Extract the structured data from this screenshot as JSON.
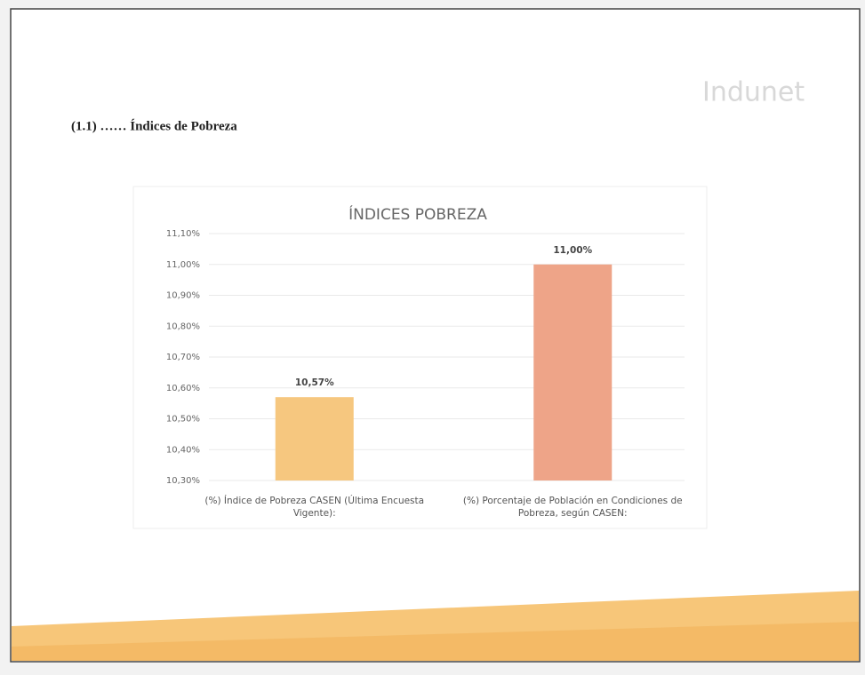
{
  "heading": "(1.1) …… Índices de Pobreza",
  "logo": "Indunet",
  "chart_data": {
    "type": "bar",
    "title": "ÍNDICES POBREZA",
    "categories": [
      "(%) Índice de Pobreza CASEN (Última Encuesta Vigente):",
      "(%) Porcentaje de Población en Condiciones de Pobreza, según CASEN:"
    ],
    "values": [
      10.57,
      11.0
    ],
    "value_labels": [
      "10,57%",
      "11,00%"
    ],
    "colors": [
      "#f6c77f",
      "#eea488"
    ],
    "ylim": [
      10.3,
      11.1
    ],
    "yticks": [
      {
        "value": 10.3,
        "label": "10,30%"
      },
      {
        "value": 10.4,
        "label": "10,40%"
      },
      {
        "value": 10.5,
        "label": "10,50%"
      },
      {
        "value": 10.6,
        "label": "10,60%"
      },
      {
        "value": 10.7,
        "label": "10,70%"
      },
      {
        "value": 10.8,
        "label": "10,80%"
      },
      {
        "value": 10.9,
        "label": "10,90%"
      },
      {
        "value": 11.0,
        "label": "11,00%"
      },
      {
        "value": 11.1,
        "label": "11,10%"
      }
    ],
    "grid": true
  }
}
